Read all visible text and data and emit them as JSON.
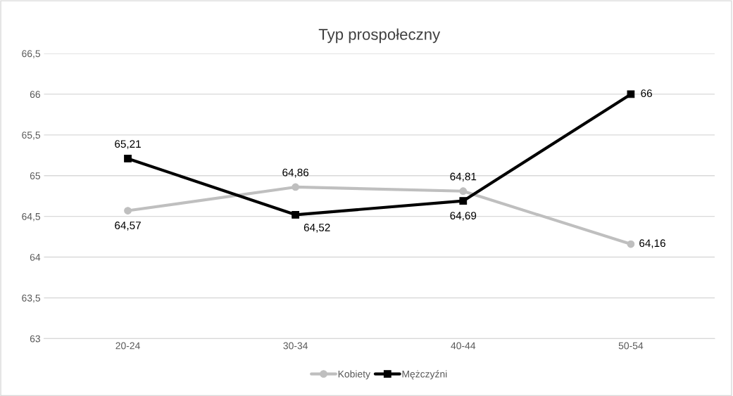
{
  "chart_data": {
    "type": "line",
    "title": "Typ prospołeczny",
    "categories": [
      "20-24",
      "30-34",
      "40-44",
      "50-54"
    ],
    "series": [
      {
        "name": "Kobiety",
        "color": "#bfbfbf",
        "marker": "circle",
        "values": [
          64.57,
          64.86,
          64.81,
          64.16
        ],
        "value_labels": [
          "64,57",
          "64,86",
          "64,81",
          "64,16"
        ]
      },
      {
        "name": "Mężczyźni",
        "color": "#000000",
        "marker": "square",
        "values": [
          65.21,
          64.52,
          64.69,
          66
        ],
        "value_labels": [
          "65,21",
          "64,52",
          "64,69",
          "66"
        ]
      }
    ],
    "ylim": [
      63,
      66.5
    ],
    "yticks": [
      63,
      {
        "value": 63.5,
        "label": "63,5"
      },
      64,
      {
        "value": 64.5,
        "label": "64,5"
      },
      65,
      {
        "value": 65.5,
        "label": "65,5"
      },
      66,
      {
        "value": 66.5,
        "label": "66,5"
      }
    ],
    "grid": "y",
    "legend": "bottom",
    "line_style": "solid"
  }
}
